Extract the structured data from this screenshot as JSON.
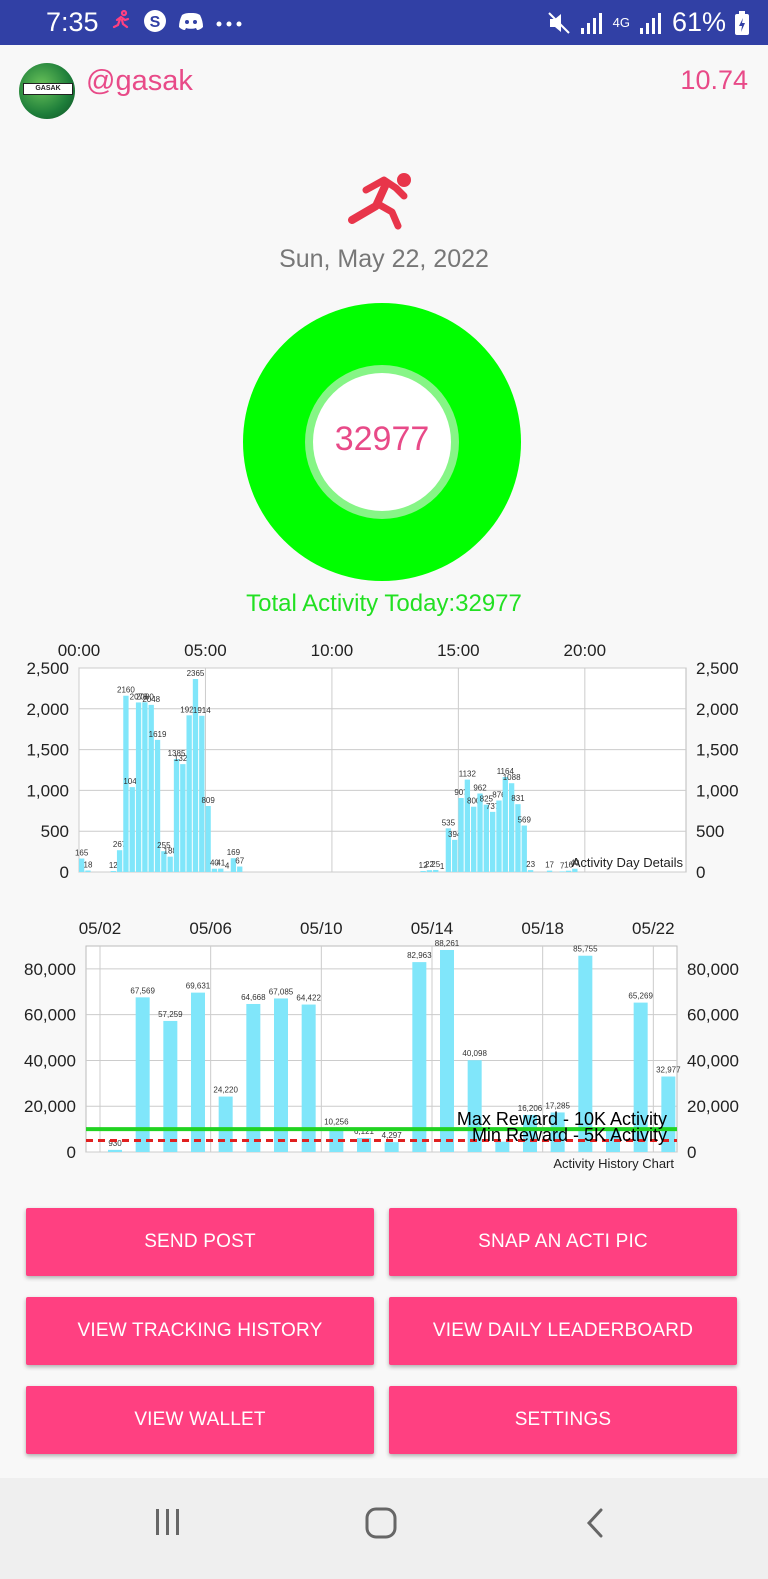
{
  "status_bar": {
    "time": "7:35",
    "battery": "61%",
    "network": "4G",
    "left_icons": [
      "activity-app-icon",
      "skype-icon",
      "discord-icon",
      "more-dots-icon"
    ],
    "right_icons": [
      "mute-icon",
      "signal-icon",
      "signal-4g-icon",
      "battery-icon"
    ]
  },
  "header": {
    "username": "@gasak",
    "balance": "10.74",
    "avatar_label": "GASAK"
  },
  "main": {
    "date": "Sun, May 22, 2022",
    "activity_value": "32977",
    "total_text": "Total Activity Today:32977"
  },
  "colors": {
    "accent": "#ff4081",
    "pink_text": "#e84a88",
    "ring_green": "#00ff00",
    "bar_blue": "#80e6fa",
    "status_bar": "#3140a5",
    "max_line": "#22d322",
    "min_line": "#e02020"
  },
  "chart_data": [
    {
      "type": "bar",
      "title": "Activity Day Details",
      "x_ticks": [
        "00:00",
        "05:00",
        "10:00",
        "15:00",
        "20:00"
      ],
      "y_ticks": [
        "0",
        "500",
        "1,000",
        "1,500",
        "2,000",
        "2,500"
      ],
      "ylim": [
        0,
        2500
      ],
      "xlim": [
        0,
        24
      ],
      "x_unit": "hours",
      "x": [
        0.0,
        0.25,
        1.25,
        1.5,
        1.75,
        2.0,
        2.25,
        2.5,
        2.75,
        3.0,
        3.25,
        3.5,
        3.75,
        4.0,
        4.25,
        4.5,
        4.75,
        5.0,
        5.25,
        5.5,
        5.75,
        6.0,
        6.25,
        13.5,
        13.75,
        14.0,
        14.25,
        14.5,
        14.75,
        15.0,
        15.25,
        15.5,
        15.75,
        16.0,
        16.25,
        16.5,
        16.75,
        17.0,
        17.25,
        17.5,
        17.75,
        18.5,
        19.0,
        19.25,
        19.5
      ],
      "values": [
        165,
        18,
        12,
        267,
        2160,
        1040,
        2078,
        2080,
        2048,
        1619,
        255,
        188,
        1385,
        1322,
        1920,
        2365,
        1914,
        809,
        40,
        41,
        4,
        169,
        67,
        12,
        22,
        25,
        1,
        535,
        394,
        907,
        1132,
        800,
        962,
        825,
        737,
        876,
        1164,
        1088,
        831,
        569,
        23,
        17,
        7,
        16,
        40
      ],
      "labels": [
        "165",
        "18",
        "12",
        "267",
        "2160",
        "1040",
        "2078",
        "2080",
        "2048",
        "1619",
        "255",
        "188",
        "1385",
        "1322",
        "1920",
        "2365",
        "1914",
        "809",
        "40",
        "41",
        "4",
        "169",
        "67",
        "12",
        "22",
        "25",
        "1",
        "535",
        "394",
        "907",
        "1132",
        "800",
        "962",
        "825",
        "737",
        "876",
        "1164",
        "1088",
        "831",
        "569",
        "23",
        "17",
        "7",
        "16",
        "40"
      ],
      "label_text": "Activity Day Details"
    },
    {
      "type": "bar",
      "title": "Activity History Chart",
      "x_ticks": [
        "05/02",
        "05/06",
        "05/10",
        "05/14",
        "05/18",
        "05/22"
      ],
      "y_ticks": [
        "0",
        "20,000",
        "40,000",
        "60,000",
        "80,000"
      ],
      "ylim": [
        0,
        90000
      ],
      "categories": [
        "05/02",
        "05/03",
        "05/04",
        "05/05",
        "05/06",
        "05/07",
        "05/08",
        "05/09",
        "05/10",
        "05/11",
        "05/12",
        "05/13",
        "05/14",
        "05/15",
        "05/16",
        "05/17",
        "05/18",
        "05/19",
        "05/20",
        "05/21",
        "05/22"
      ],
      "values": [
        930,
        67569,
        57259,
        69631,
        24220,
        64668,
        67085,
        64422,
        10256,
        6121,
        4297,
        82963,
        88261,
        40098,
        4500,
        16206,
        17285,
        85755,
        9500,
        65269,
        32977
      ],
      "labels": [
        "930",
        "67,569",
        "57,259",
        "69,631",
        "24,220",
        "64,668",
        "67,085",
        "64,422",
        "10,256",
        "6,121",
        "4,297",
        "82,963",
        "88,261",
        "40,098",
        "",
        "16,206",
        "17,285",
        "85,755",
        "",
        "65,269",
        "32,977"
      ],
      "max_reward_label": "Max Reward - 10K Activity",
      "min_reward_label": "Min Reward - 5K Activity",
      "max_reward_value": 10000,
      "min_reward_value": 5000,
      "label_text": "Activity History Chart"
    }
  ],
  "buttons": [
    {
      "label": "SEND POST",
      "name": "send-post-button"
    },
    {
      "label": "SNAP AN ACTI PIC",
      "name": "snap-acti-pic-button"
    },
    {
      "label": "VIEW TRACKING HISTORY",
      "name": "view-tracking-history-button"
    },
    {
      "label": "VIEW DAILY LEADERBOARD",
      "name": "view-daily-leaderboard-button"
    },
    {
      "label": "VIEW WALLET",
      "name": "view-wallet-button"
    },
    {
      "label": "SETTINGS",
      "name": "settings-button"
    }
  ],
  "nav_icons": [
    "recent-apps-icon",
    "home-icon",
    "back-icon"
  ]
}
